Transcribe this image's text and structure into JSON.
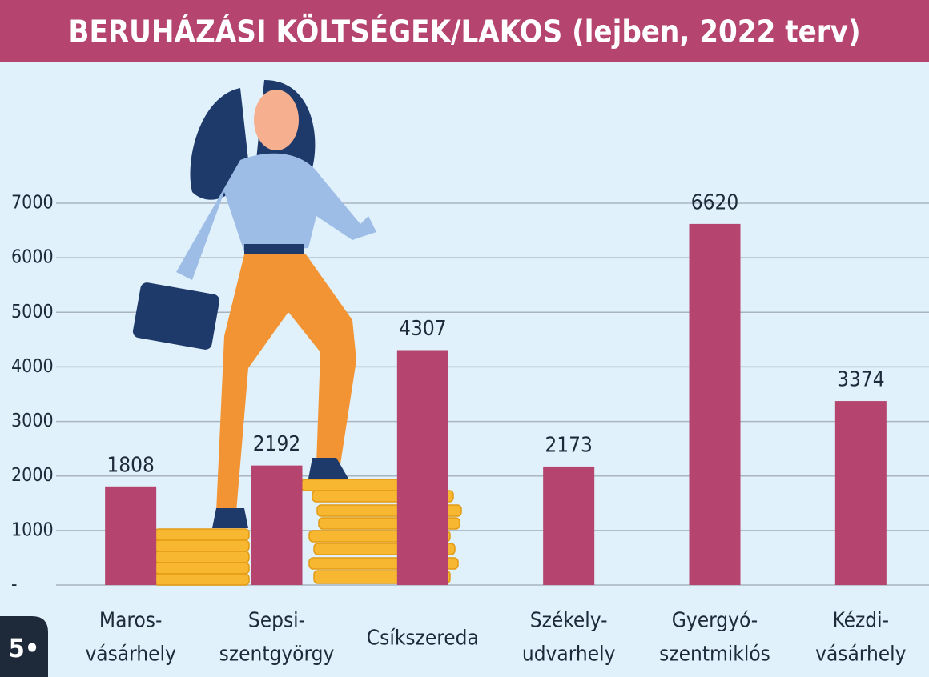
{
  "page_number": "5•",
  "chart_data": {
    "type": "bar",
    "title": "BERUHÁZÁSI KÖLTSÉGEK/LAKOS (lejben, 2022 terv)",
    "categories": [
      [
        "Maros-",
        "vásárhely"
      ],
      [
        "Sepsi-",
        "szentgyörgy"
      ],
      [
        "Csíkszereda"
      ],
      [
        "Székely-",
        "udvarhely"
      ],
      [
        "Gyergyó-",
        "szentmiklós"
      ],
      [
        "Kézdi-",
        "vásárhely"
      ]
    ],
    "values": [
      1808,
      2192,
      4307,
      2173,
      6620,
      3374
    ],
    "color": "#b5446e",
    "ylim": [
      0,
      7000
    ],
    "yticks": [
      {
        "value": 0,
        "label": "-"
      },
      1000,
      2000,
      3000,
      4000,
      5000,
      6000,
      7000
    ],
    "grid": true
  }
}
